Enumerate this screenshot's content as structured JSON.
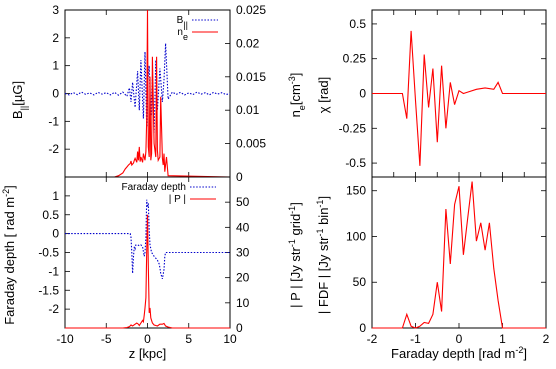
{
  "colors": {
    "red": "#ff0000",
    "blue": "#0000cc",
    "axis": "#000000"
  },
  "chart_data": [
    {
      "id": "top-left",
      "type": "line",
      "xlim": [
        -10,
        10
      ],
      "ylim_left": [
        -3,
        3
      ],
      "ylim_right": [
        0,
        0.025
      ],
      "x_ticks": [
        -10,
        -5,
        0,
        5,
        10
      ],
      "y_ticks_left": [
        -2,
        -1,
        0,
        1,
        2,
        3
      ],
      "y_tick_labels_left": [
        "-2",
        "-1",
        "0",
        "1",
        "2",
        "3"
      ],
      "y_ticks_right": [
        0,
        0.005,
        0.01,
        0.015,
        0.02,
        0.025
      ],
      "y_tick_labels_right": [
        "0",
        "0.005",
        "0.01",
        "0.015",
        "0.02",
        "0.025"
      ],
      "ylabel_left": "B",
      "ylabel_left_sub": "||",
      "ylabel_left_unit": "[µG]",
      "ylabel_right": "n",
      "ylabel_right_sub": "e",
      "ylabel_right_unit": "[cm",
      "ylabel_right_sup": "-3",
      "ylabel_right_close": "]",
      "legend": [
        {
          "label": "B",
          "sub": "||",
          "style": "dotted",
          "color": "#0000cc"
        },
        {
          "label": "n",
          "sub": "e",
          "style": "solid",
          "color": "#ff0000"
        }
      ],
      "series": [
        {
          "axis": "left",
          "style": "dotted",
          "color": "#0000cc",
          "x": [
            -10,
            -9.5,
            -9,
            -8.5,
            -8,
            -7.5,
            -7,
            -6.5,
            -6,
            -5.5,
            -5,
            -4.5,
            -4,
            -3.5,
            -3,
            -2.5,
            -2.2,
            -2,
            -1.8,
            -1.5,
            -1.2,
            -1,
            -0.8,
            -0.5,
            -0.3,
            -0.1,
            0,
            0.2,
            0.4,
            0.6,
            0.8,
            1,
            1.2,
            1.5,
            1.8,
            2,
            2.2,
            2.5,
            3,
            3.5,
            4,
            4.5,
            5,
            5.5,
            6,
            6.5,
            7,
            7.5,
            8,
            8.5,
            9,
            9.5,
            10
          ],
          "y": [
            0,
            -0.05,
            0.03,
            -0.04,
            0.05,
            -0.03,
            0.02,
            -0.05,
            0.04,
            -0.02,
            0.03,
            -0.05,
            0.04,
            -0.06,
            0.05,
            -0.1,
            0.2,
            -0.3,
            0.4,
            -0.5,
            0.8,
            -0.6,
            1.2,
            -0.9,
            1.5,
            -1.2,
            0.3,
            1.0,
            -0.8,
            0.6,
            -1.4,
            1.2,
            -0.6,
            0.9,
            -0.3,
            0.5,
            1.8,
            -0.2,
            0.05,
            -0.03,
            0.04,
            -0.05,
            0.02,
            -0.04,
            0.05,
            -0.02,
            0.03,
            -0.05,
            0.04,
            -0.02,
            0.03,
            -0.04,
            0
          ]
        },
        {
          "axis": "right",
          "style": "solid",
          "color": "#ff0000",
          "x": [
            -10,
            -4,
            -3.5,
            -3,
            -2.7,
            -2.5,
            -2.3,
            -2.1,
            -2,
            -1.9,
            -1.7,
            -1.6,
            -1.5,
            -1.3,
            -1.2,
            -1.1,
            -1,
            -0.9,
            -0.8,
            -0.6,
            -0.5,
            -0.3,
            -0.2,
            -0.1,
            0,
            0.1,
            0.2,
            0.3,
            0.4,
            0.5,
            0.6,
            0.8,
            1,
            1.1,
            1.2,
            1.3,
            1.5,
            1.6,
            1.8,
            1.9,
            2,
            2.1,
            2.3,
            2.5,
            10
          ],
          "y": [
            0,
            0,
            0.0002,
            0.0006,
            0.0012,
            0.0015,
            0.0018,
            0.002,
            0.0024,
            0.0018,
            0.0021,
            0.0025,
            0.0028,
            0.0022,
            0.0038,
            0.0025,
            0.0045,
            0.0023,
            0.003,
            0.0022,
            0.0035,
            0.0025,
            0.0038,
            0.0085,
            0.025,
            0.0045,
            0.003,
            0.015,
            0.0025,
            0.0035,
            0.018,
            0.005,
            0.003,
            0.018,
            0.004,
            0.0025,
            0.003,
            0.012,
            0.0028,
            0.0018,
            0.0035,
            0.0008,
            0.003,
            0.0002,
            0
          ]
        }
      ]
    },
    {
      "id": "bottom-left",
      "type": "line",
      "xlim": [
        -10,
        10
      ],
      "ylim_left": [
        -2.5,
        1.5
      ],
      "ylim_right": [
        0,
        60
      ],
      "x_ticks": [
        -10,
        -5,
        0,
        5,
        10
      ],
      "x_tick_labels": [
        "-10",
        "-5",
        "0",
        "5",
        "10"
      ],
      "y_ticks_left": [
        -2,
        -1.5,
        -1,
        -0.5,
        0,
        0.5,
        1
      ],
      "y_tick_labels_left": [
        "-2",
        "-1.5",
        "-1",
        "-0.5",
        "0",
        "0.5",
        "1"
      ],
      "y_ticks_right": [
        0,
        10,
        20,
        30,
        40,
        50
      ],
      "y_tick_labels_right": [
        "0",
        "10",
        "20",
        "30",
        "40",
        "50"
      ],
      "xlabel": "z [kpc]",
      "ylabel_left": "Faraday depth [ rad m",
      "ylabel_left_sup": "-2",
      "ylabel_left_close": "]",
      "ylabel_right": "| P |   [Jy str",
      "ylabel_right_sup1": "-1",
      "ylabel_right_mid": " grid",
      "ylabel_right_sup2": "-1",
      "ylabel_right_close": "]",
      "legend": [
        {
          "label": "Faraday depth",
          "style": "dotted",
          "color": "#0000cc"
        },
        {
          "label": "| P |",
          "style": "solid",
          "color": "#ff0000"
        }
      ],
      "series": [
        {
          "axis": "left",
          "style": "dotted",
          "color": "#0000cc",
          "x": [
            -10,
            -2.1,
            -2,
            -1.9,
            -1.8,
            -1.7,
            -1.6,
            -1.5,
            -1.4,
            -1.2,
            -1,
            -0.8,
            -0.6,
            -0.4,
            -0.3,
            -0.2,
            -0.1,
            0,
            0.1,
            0.2,
            0.3,
            0.5,
            0.8,
            1,
            1.2,
            1.4,
            1.5,
            1.6,
            1.8,
            2,
            2.1,
            2.2,
            2.5,
            10
          ],
          "y": [
            0,
            0,
            -0.1,
            -0.5,
            -1.05,
            -0.6,
            -0.35,
            -0.4,
            -0.3,
            -0.3,
            -0.32,
            -0.3,
            -0.35,
            -0.6,
            -0.5,
            -0.1,
            0.9,
            0.7,
            0.8,
            0.1,
            -0.3,
            -0.5,
            -0.6,
            -0.65,
            -0.7,
            -0.8,
            -0.9,
            -1.05,
            -1.2,
            -0.95,
            -0.6,
            -0.5,
            -0.5,
            -0.5
          ]
        },
        {
          "axis": "right",
          "style": "solid",
          "color": "#ff0000",
          "x": [
            -10,
            -3,
            -2.5,
            -2.2,
            -2,
            -1.8,
            -1.5,
            -1.3,
            -1.1,
            -1,
            -0.8,
            -0.6,
            -0.5,
            -0.4,
            -0.3,
            -0.2,
            -0.1,
            0,
            0.1,
            0.2,
            0.3,
            0.4,
            0.6,
            0.8,
            1,
            1.2,
            1.5,
            1.8,
            2,
            2.2,
            2.5,
            3,
            10
          ],
          "y": [
            0,
            0,
            0.2,
            0.5,
            1.2,
            0.8,
            1.5,
            2,
            1.5,
            1,
            2,
            3,
            2.5,
            5,
            8,
            12,
            30,
            45,
            25,
            6,
            8,
            4,
            2,
            1.2,
            1,
            0.8,
            1.5,
            1.5,
            1.8,
            0.8,
            0.4,
            0,
            0
          ]
        }
      ]
    },
    {
      "id": "top-right",
      "type": "line",
      "xlim": [
        -2,
        2
      ],
      "ylim": [
        -0.6,
        0.6
      ],
      "x_ticks": [
        -2,
        -1.5,
        -1,
        -0.5,
        0,
        0.5,
        1,
        1.5,
        2
      ],
      "y_ticks": [
        -0.5,
        -0.25,
        0,
        0.25,
        0.5
      ],
      "y_tick_labels": [
        "-0.5",
        "-0.25",
        "0",
        "0.25",
        "0.5"
      ],
      "ylabel": "χ  [rad]",
      "series": [
        {
          "style": "solid",
          "color": "#ff0000",
          "x": [
            -2,
            -1.3,
            -1.2,
            -1.1,
            -1,
            -0.9,
            -0.8,
            -0.7,
            -0.6,
            -0.5,
            -0.4,
            -0.3,
            -0.2,
            -0.1,
            0,
            0.1,
            0.2,
            0.4,
            0.6,
            0.8,
            0.9,
            1,
            2
          ],
          "y": [
            0,
            0,
            -0.18,
            0.45,
            -0.05,
            -0.52,
            0.28,
            -0.1,
            0.18,
            -0.35,
            0.2,
            -0.25,
            0.08,
            -0.08,
            0.02,
            0,
            0.01,
            0.03,
            0.04,
            0.03,
            0.08,
            0,
            0
          ]
        }
      ]
    },
    {
      "id": "bottom-right",
      "type": "line",
      "xlim": [
        -2,
        2
      ],
      "ylim": [
        0,
        165
      ],
      "x_ticks": [
        -2,
        -1,
        0,
        1,
        2
      ],
      "x_tick_labels": [
        "-2",
        "-1",
        "0",
        "1",
        "2"
      ],
      "y_ticks": [
        0,
        50,
        100,
        150
      ],
      "y_tick_labels": [
        "0",
        "50",
        "100",
        "150"
      ],
      "xlabel": "Faraday depth  [rad m",
      "xlabel_sup": "-2",
      "xlabel_close": "]",
      "ylabel": "| FDF |  [Jy str",
      "ylabel_sup1": "-1",
      "ylabel_mid": " bin",
      "ylabel_sup2": "-1",
      "ylabel_close": "]",
      "series": [
        {
          "style": "solid",
          "color": "#ff0000",
          "x": [
            -2,
            -1.3,
            -1.2,
            -1.1,
            -1,
            -0.9,
            -0.8,
            -0.7,
            -0.6,
            -0.5,
            -0.4,
            -0.3,
            -0.2,
            -0.1,
            0,
            0.1,
            0.2,
            0.3,
            0.4,
            0.5,
            0.6,
            0.7,
            0.8,
            0.9,
            1,
            2
          ],
          "y": [
            0,
            0,
            15,
            2,
            0,
            2,
            6,
            5,
            15,
            50,
            18,
            130,
            70,
            135,
            155,
            80,
            120,
            160,
            95,
            115,
            85,
            115,
            65,
            30,
            0,
            0
          ]
        }
      ]
    }
  ]
}
